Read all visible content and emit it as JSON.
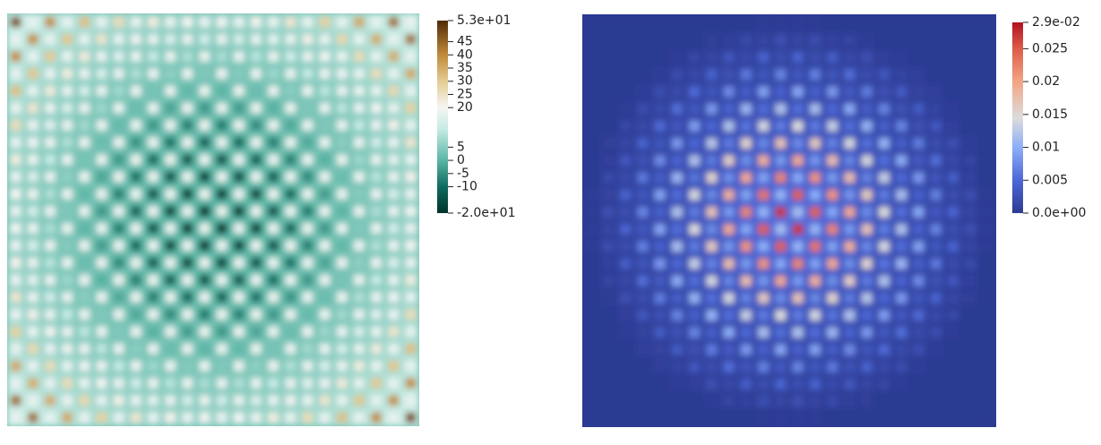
{
  "panels": [
    {
      "colorbar": {
        "range": [
          -20,
          53
        ],
        "ticks": [
          {
            "value": 53,
            "label": "5.3e+01"
          },
          45,
          40,
          35,
          30,
          25,
          20,
          5,
          0,
          -5,
          -10,
          {
            "value": -20,
            "label": "-2.0e+01"
          }
        ],
        "colormap": [
          {
            "value": -20,
            "color": "#00332a"
          },
          {
            "value": -10,
            "color": "#0f6b5e"
          },
          {
            "value": 0,
            "color": "#5bb5a5"
          },
          {
            "value": 12,
            "color": "#c7ebe4"
          },
          {
            "value": 20,
            "color": "#f5f5f3"
          },
          {
            "value": 30,
            "color": "#e3cc93"
          },
          {
            "value": 40,
            "color": "#c08a3a"
          },
          {
            "value": 53,
            "color": "#4f2c05"
          }
        ]
      }
    },
    {
      "colorbar": {
        "range": [
          0,
          0.029
        ],
        "ticks": [
          {
            "value": 0.029,
            "label": "2.9e-02"
          },
          0.025,
          0.02,
          0.015,
          0.01,
          0.005,
          {
            "value": 0,
            "label": "0.0e+00"
          }
        ],
        "colormap": [
          {
            "value": 0,
            "color": "#2c3a92"
          },
          {
            "value": 0.005,
            "color": "#4d68d6"
          },
          {
            "value": 0.01,
            "color": "#8eaef8"
          },
          {
            "value": 0.0145,
            "color": "#dddcdb"
          },
          {
            "value": 0.02,
            "color": "#f2a585"
          },
          {
            "value": 0.025,
            "color": "#dc5d48"
          },
          {
            "value": 0.029,
            "color": "#b2101f"
          }
        ]
      }
    }
  ]
}
